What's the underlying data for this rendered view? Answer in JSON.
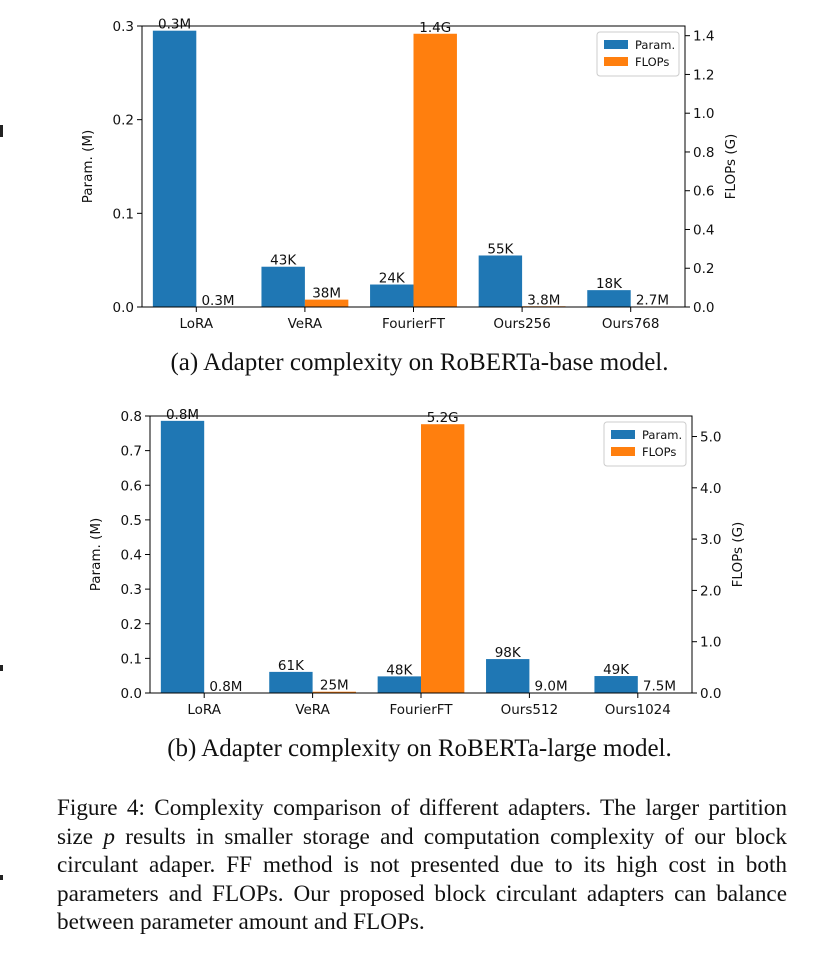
{
  "chart_data": [
    {
      "type": "bar",
      "title": "",
      "categories": [
        "LoRA",
        "VeRA",
        "FourierFT",
        "Ours256",
        "Ours768"
      ],
      "ylabel": "Param. (M)",
      "y2label": "FLOPs (G)",
      "ylim": [
        0,
        0.3
      ],
      "y2lim": [
        0,
        1.45
      ],
      "yticks": [
        0.0,
        0.1,
        0.2,
        0.3
      ],
      "ytick_labels": [
        "0.0",
        "0.1",
        "0.2",
        "0.3"
      ],
      "y2ticks": [
        0.0,
        0.2,
        0.4,
        0.6,
        0.8,
        1.0,
        1.2,
        1.4
      ],
      "y2tick_labels": [
        "0.0",
        "0.2",
        "0.4",
        "0.6",
        "0.8",
        "1.0",
        "1.2",
        "1.4"
      ],
      "legend_position": "top-right",
      "grid": false,
      "series": [
        {
          "name": "Param.",
          "axis": "left",
          "color": "#1f77b4",
          "values": [
            0.295,
            0.043,
            0.024,
            0.055,
            0.018
          ],
          "labels": [
            "0.3M",
            "43K",
            "24K",
            "55K",
            "18K"
          ]
        },
        {
          "name": "FLOPs",
          "axis": "right",
          "color": "#ff7f0e",
          "values": [
            0.0003,
            0.038,
            1.41,
            0.0038,
            0.0027
          ],
          "labels": [
            "0.3M",
            "38M",
            "1.4G",
            "3.8M",
            "2.7M"
          ]
        }
      ],
      "caption": "(a)  Adapter complexity on RoBERTa-base model."
    },
    {
      "type": "bar",
      "title": "",
      "categories": [
        "LoRA",
        "VeRA",
        "FourierFT",
        "Ours512",
        "Ours1024"
      ],
      "ylabel": "Param. (M)",
      "y2label": "FLOPs (G)",
      "ylim": [
        0,
        0.8
      ],
      "y2lim": [
        0,
        5.4
      ],
      "yticks": [
        0.0,
        0.1,
        0.2,
        0.3,
        0.4,
        0.5,
        0.6,
        0.7,
        0.8
      ],
      "ytick_labels": [
        "0.0",
        "0.1",
        "0.2",
        "0.3",
        "0.4",
        "0.5",
        "0.6",
        "0.7",
        "0.8"
      ],
      "y2ticks": [
        0.0,
        1.0,
        2.0,
        3.0,
        4.0,
        5.0
      ],
      "y2tick_labels": [
        "0.0",
        "1.0",
        "2.0",
        "3.0",
        "4.0",
        "5.0"
      ],
      "legend_position": "top-right",
      "grid": false,
      "series": [
        {
          "name": "Param.",
          "axis": "left",
          "color": "#1f77b4",
          "values": [
            0.786,
            0.061,
            0.048,
            0.098,
            0.049
          ],
          "labels": [
            "0.8M",
            "61K",
            "48K",
            "98K",
            "49K"
          ]
        },
        {
          "name": "FLOPs",
          "axis": "right",
          "color": "#ff7f0e",
          "values": [
            0.0008,
            0.025,
            5.24,
            0.009,
            0.0075
          ],
          "labels": [
            "0.8M",
            "25M",
            "5.2G",
            "9.0M",
            "7.5M"
          ]
        }
      ],
      "caption": "(b)  Adapter complexity on RoBERTa-large model."
    }
  ],
  "figure_caption": {
    "part1": "Figure 4: Complexity comparison of different adapters. The larger partition size ",
    "var": "p",
    "part2": " results in smaller storage and computation complexity of our block circulant adaper. FF method is not presented due to its high cost in both parameters and FLOPs.  Our proposed block circulant adapters can balance between parameter amount and FLOPs."
  }
}
